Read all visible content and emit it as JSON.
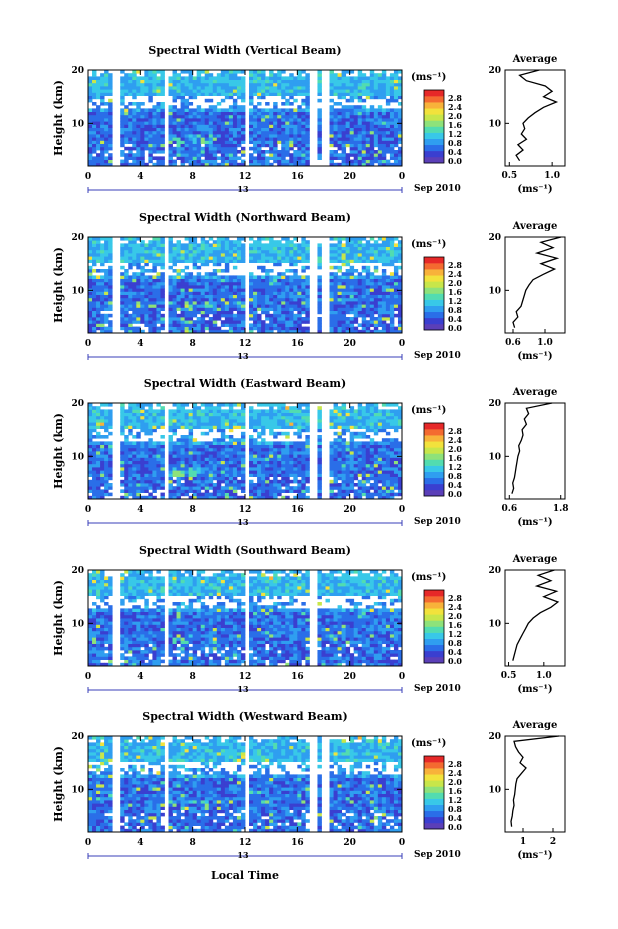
{
  "figure": {
    "x_axis_title": "Local Time",
    "date_label": "Sep 2010",
    "date_day": "13",
    "height_axis_title": "Height (km)",
    "colorbar_unit": "(ms⁻¹)",
    "profile_title": "Average",
    "profile_unit": "(ms⁻¹)"
  },
  "colorbar": {
    "ticks": [
      "0.0",
      "0.4",
      "0.8",
      "1.2",
      "1.6",
      "2.0",
      "2.4",
      "2.8"
    ],
    "colors": [
      "#5b3fb8",
      "#3a3fd0",
      "#2a6ee8",
      "#2f9ef0",
      "#38c8e8",
      "#52dcb0",
      "#8ee27a",
      "#c8e64a",
      "#f2e23c",
      "#f8b23a",
      "#f46a30",
      "#e62828"
    ]
  },
  "chart_data": [
    {
      "type": "heatmap",
      "title": "Spectral Width (Vertical Beam)",
      "xlabel": "",
      "ylabel": "Height (km)",
      "x_ticks": [
        "0",
        "4",
        "8",
        "12",
        "16",
        "20",
        "0"
      ],
      "y_ticks": [
        "10",
        "20"
      ],
      "xlim": [
        0,
        24
      ],
      "ylim": [
        2,
        20
      ],
      "data_gaps_hours": [
        [
          2.0,
          2.6
        ],
        [
          5.7,
          6.2
        ],
        [
          11.9,
          12.3
        ],
        [
          17.0,
          17.4
        ],
        [
          17.7,
          18.0
        ],
        [
          18.3,
          18.6
        ]
      ],
      "profile": {
        "title": "Average",
        "x_ticks": [
          "0.5",
          "1.0"
        ],
        "xlim": [
          0.45,
          1.15
        ],
        "heights": [
          3,
          4,
          5,
          6,
          7,
          8,
          9,
          10,
          11,
          12,
          13,
          14,
          15,
          16,
          17,
          18,
          19,
          20
        ],
        "values": [
          0.62,
          0.58,
          0.66,
          0.6,
          0.7,
          0.64,
          0.68,
          0.66,
          0.72,
          0.8,
          0.9,
          1.05,
          0.9,
          1.0,
          0.92,
          0.7,
          0.62,
          0.85
        ]
      }
    },
    {
      "type": "heatmap",
      "title": "Spectral Width (Northward Beam)",
      "xlabel": "",
      "ylabel": "Height (km)",
      "x_ticks": [
        "0",
        "4",
        "8",
        "12",
        "16",
        "20",
        "0"
      ],
      "y_ticks": [
        "10",
        "20"
      ],
      "xlim": [
        0,
        24
      ],
      "ylim": [
        2,
        20
      ],
      "data_gaps_hours": [
        [
          2.0,
          2.6
        ],
        [
          5.7,
          6.2
        ],
        [
          11.9,
          12.3
        ],
        [
          17.0,
          17.4
        ],
        [
          17.7,
          18.0
        ],
        [
          18.3,
          18.6
        ]
      ],
      "profile": {
        "title": "Average",
        "x_ticks": [
          "0.6",
          "1.0"
        ],
        "xlim": [
          0.5,
          1.25
        ],
        "heights": [
          3,
          4,
          5,
          6,
          7,
          8,
          9,
          10,
          11,
          12,
          13,
          14,
          15,
          16,
          17,
          18,
          19,
          20
        ],
        "values": [
          0.62,
          0.6,
          0.66,
          0.64,
          0.7,
          0.72,
          0.74,
          0.76,
          0.8,
          0.85,
          0.98,
          1.12,
          0.95,
          1.15,
          0.9,
          1.1,
          0.95,
          1.2
        ]
      }
    },
    {
      "type": "heatmap",
      "title": "Spectral Width (Eastward Beam)",
      "xlabel": "",
      "ylabel": "Height (km)",
      "x_ticks": [
        "0",
        "4",
        "8",
        "12",
        "16",
        "20",
        "0"
      ],
      "y_ticks": [
        "10",
        "20"
      ],
      "xlim": [
        0,
        24
      ],
      "ylim": [
        2,
        20
      ],
      "data_gaps_hours": [
        [
          2.0,
          2.6
        ],
        [
          5.7,
          6.2
        ],
        [
          11.9,
          12.3
        ],
        [
          17.0,
          17.4
        ],
        [
          17.7,
          18.0
        ],
        [
          18.3,
          18.6
        ]
      ],
      "profile": {
        "title": "Average",
        "x_ticks": [
          "0.6",
          "1.8"
        ],
        "xlim": [
          0.5,
          1.9
        ],
        "heights": [
          3,
          4,
          5,
          6,
          7,
          8,
          9,
          10,
          11,
          12,
          13,
          14,
          15,
          16,
          17,
          18,
          19,
          20
        ],
        "values": [
          0.66,
          0.7,
          0.68,
          0.72,
          0.74,
          0.76,
          0.78,
          0.8,
          0.84,
          0.82,
          0.88,
          0.92,
          0.9,
          1.0,
          0.95,
          1.05,
          1.0,
          1.6
        ]
      }
    },
    {
      "type": "heatmap",
      "title": "Spectral Width (Southward Beam)",
      "xlabel": "",
      "ylabel": "Height (km)",
      "x_ticks": [
        "0",
        "4",
        "8",
        "12",
        "16",
        "20",
        "0"
      ],
      "y_ticks": [
        "10",
        "20"
      ],
      "xlim": [
        0,
        24
      ],
      "ylim": [
        2,
        20
      ],
      "data_gaps_hours": [
        [
          2.0,
          2.6
        ],
        [
          5.7,
          6.2
        ],
        [
          11.9,
          12.3
        ],
        [
          17.0,
          17.4
        ]
      ],
      "profile": {
        "title": "Average",
        "x_ticks": [
          "0.5",
          "1.0"
        ],
        "xlim": [
          0.45,
          1.3
        ],
        "heights": [
          3,
          4,
          5,
          6,
          7,
          8,
          9,
          10,
          11,
          12,
          13,
          14,
          15,
          16,
          17,
          18,
          19,
          20
        ],
        "values": [
          0.56,
          0.58,
          0.6,
          0.62,
          0.66,
          0.7,
          0.74,
          0.78,
          0.85,
          0.95,
          1.1,
          1.2,
          1.0,
          1.18,
          0.9,
          1.1,
          0.92,
          1.15
        ]
      }
    },
    {
      "type": "heatmap",
      "title": "Spectral Width (Westward Beam)",
      "xlabel": "Local Time",
      "ylabel": "Height (km)",
      "x_ticks": [
        "0",
        "4",
        "8",
        "12",
        "16",
        "20",
        "0"
      ],
      "y_ticks": [
        "10",
        "20"
      ],
      "xlim": [
        0,
        24
      ],
      "ylim": [
        2,
        20
      ],
      "data_gaps_hours": [
        [
          2.0,
          2.6
        ],
        [
          5.7,
          6.2
        ],
        [
          11.9,
          12.3
        ],
        [
          17.0,
          17.4
        ],
        [
          17.7,
          18.0
        ],
        [
          18.3,
          18.6
        ]
      ],
      "profile": {
        "title": "Average",
        "x_ticks": [
          "1",
          "2"
        ],
        "xlim": [
          0.4,
          2.4
        ],
        "heights": [
          3,
          4,
          5,
          6,
          7,
          8,
          9,
          10,
          11,
          12,
          13,
          14,
          15,
          16,
          17,
          18,
          19,
          20
        ],
        "values": [
          0.62,
          0.6,
          0.64,
          0.66,
          0.7,
          0.68,
          0.72,
          0.74,
          0.76,
          0.8,
          0.95,
          1.1,
          0.9,
          1.0,
          0.85,
          0.75,
          0.7,
          2.2
        ]
      }
    }
  ]
}
